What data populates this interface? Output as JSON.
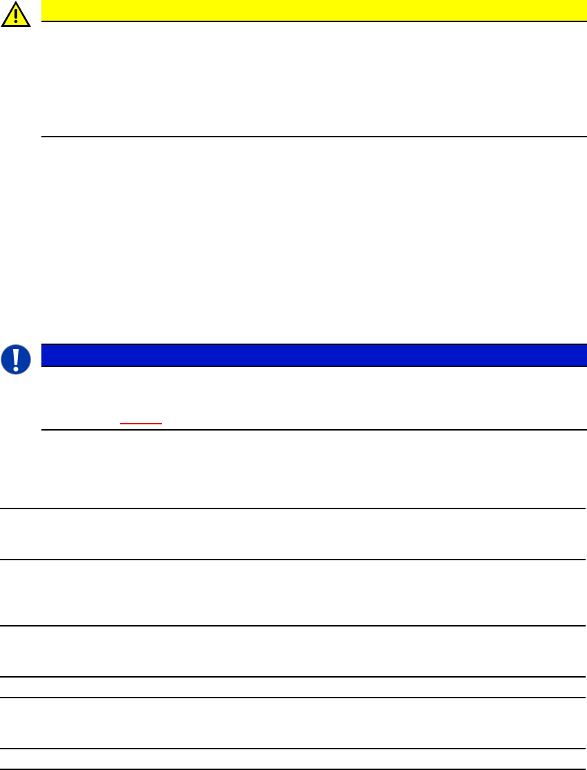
{
  "warning": {
    "icon": "warning-triangle-icon",
    "bar_color": "#ffff00"
  },
  "notice": {
    "icon": "exclamation-circle-icon",
    "bar_color": "#0015c8",
    "icon_color": "#0038a8"
  },
  "link": {
    "underline_color": "#e00000"
  },
  "rule_color": "#000000"
}
